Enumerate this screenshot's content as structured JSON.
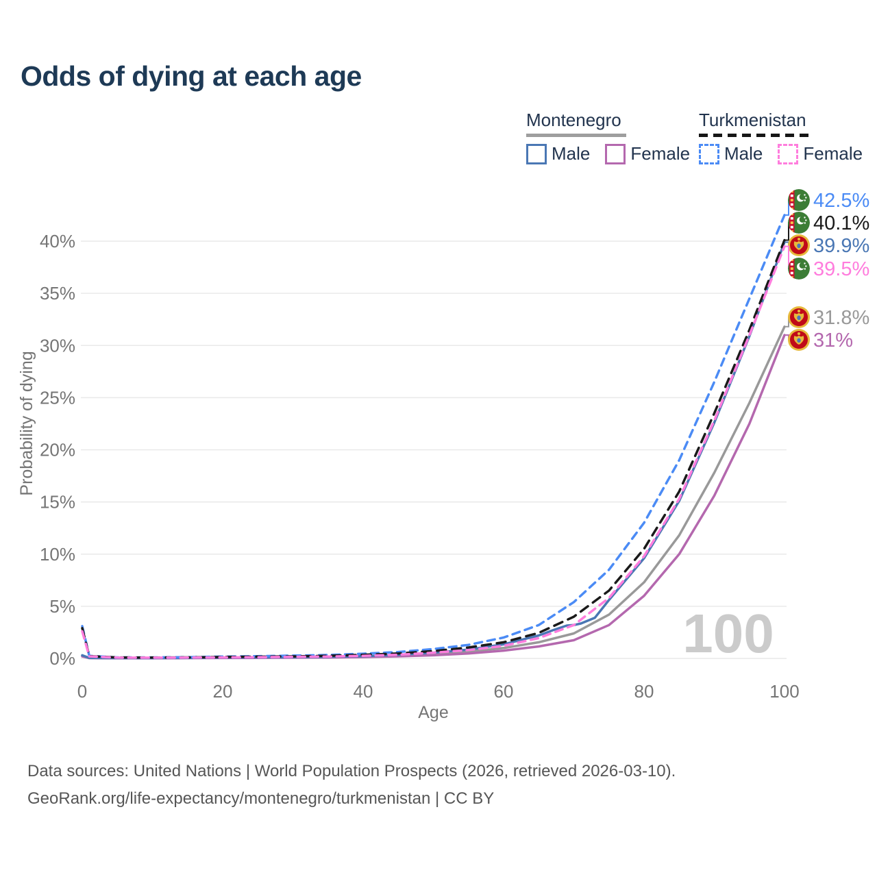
{
  "title": "Odds of dying at each age",
  "watermark_age": "100",
  "legend": {
    "groups": [
      {
        "name": "Montenegro",
        "line_style": "solid",
        "line_color": "#9e9e9e",
        "items": [
          {
            "label": "Male",
            "color": "#4a77b4",
            "dashed": false
          },
          {
            "label": "Female",
            "color": "#b468ae",
            "dashed": false
          }
        ]
      },
      {
        "name": "Turkmenistan",
        "line_style": "dashed",
        "line_color": "#161616",
        "items": [
          {
            "label": "Male",
            "color": "#4b8bf5",
            "dashed": true
          },
          {
            "label": "Female",
            "color": "#ff7ddd",
            "dashed": true
          }
        ]
      }
    ]
  },
  "footer": {
    "line1": "Data sources: United Nations | World Population Prospects (2026, retrieved 2026-03-10).",
    "line2": "GeoRank.org/life-expectancy/montenegro/turkmenistan | CC BY"
  },
  "chart_data": {
    "type": "line",
    "title": "Odds of dying at each age",
    "xlabel": "Age",
    "ylabel": "Probability of dying",
    "x_ticks": [
      0,
      20,
      40,
      60,
      80,
      100
    ],
    "y_ticks_percent": [
      0,
      5,
      10,
      15,
      20,
      25,
      30,
      35,
      40
    ],
    "xlim": [
      0,
      100
    ],
    "ylim_percent": [
      0,
      44
    ],
    "grid": "horizontal",
    "legend_position": "top-right",
    "series": [
      {
        "name": "Montenegro (both sexes)",
        "country": "Montenegro",
        "sex": "Both",
        "color": "#999999",
        "dashed": false,
        "flag": "montenegro",
        "end_label": "31.8%",
        "points": [
          [
            0,
            0.25
          ],
          [
            1,
            0.04
          ],
          [
            5,
            0.02
          ],
          [
            10,
            0.02
          ],
          [
            15,
            0.04
          ],
          [
            20,
            0.06
          ],
          [
            25,
            0.08
          ],
          [
            30,
            0.1
          ],
          [
            35,
            0.12
          ],
          [
            40,
            0.17
          ],
          [
            45,
            0.27
          ],
          [
            50,
            0.42
          ],
          [
            55,
            0.65
          ],
          [
            60,
            1.0
          ],
          [
            65,
            1.55
          ],
          [
            70,
            2.4
          ],
          [
            75,
            4.2
          ],
          [
            80,
            7.3
          ],
          [
            85,
            11.8
          ],
          [
            90,
            17.8
          ],
          [
            95,
            24.5
          ],
          [
            100,
            31.8
          ]
        ]
      },
      {
        "name": "Montenegro Female",
        "country": "Montenegro",
        "sex": "Female",
        "color": "#b468ae",
        "dashed": false,
        "flag": "montenegro",
        "end_label": "31%",
        "points": [
          [
            0,
            0.2
          ],
          [
            1,
            0.03
          ],
          [
            5,
            0.02
          ],
          [
            10,
            0.02
          ],
          [
            15,
            0.03
          ],
          [
            20,
            0.04
          ],
          [
            25,
            0.05
          ],
          [
            30,
            0.07
          ],
          [
            35,
            0.09
          ],
          [
            40,
            0.13
          ],
          [
            45,
            0.2
          ],
          [
            50,
            0.3
          ],
          [
            55,
            0.48
          ],
          [
            60,
            0.75
          ],
          [
            65,
            1.15
          ],
          [
            70,
            1.75
          ],
          [
            75,
            3.2
          ],
          [
            80,
            6.0
          ],
          [
            85,
            10.0
          ],
          [
            90,
            15.6
          ],
          [
            95,
            22.5
          ],
          [
            100,
            31.0
          ]
        ]
      },
      {
        "name": "Montenegro Male",
        "country": "Montenegro",
        "sex": "Male",
        "color": "#4a77b4",
        "dashed": false,
        "flag": "montenegro",
        "end_label": "39.9%",
        "points": [
          [
            0,
            0.3
          ],
          [
            1,
            0.05
          ],
          [
            5,
            0.03
          ],
          [
            10,
            0.03
          ],
          [
            15,
            0.05
          ],
          [
            20,
            0.08
          ],
          [
            25,
            0.1
          ],
          [
            30,
            0.12
          ],
          [
            35,
            0.15
          ],
          [
            40,
            0.22
          ],
          [
            45,
            0.35
          ],
          [
            50,
            0.55
          ],
          [
            55,
            0.85
          ],
          [
            60,
            1.35
          ],
          [
            65,
            2.2
          ],
          [
            67,
            2.7
          ],
          [
            69,
            3.15
          ],
          [
            70,
            3.2
          ],
          [
            71,
            3.35
          ],
          [
            73,
            3.9
          ],
          [
            75,
            5.6
          ],
          [
            80,
            9.6
          ],
          [
            85,
            15.1
          ],
          [
            90,
            22.6
          ],
          [
            95,
            30.9
          ],
          [
            100,
            39.9
          ]
        ]
      },
      {
        "name": "Turkmenistan Male",
        "country": "Turkmenistan",
        "sex": "Male",
        "color": "#4b8bf5",
        "dashed": true,
        "flag": "turkmenistan",
        "end_label": "42.5%",
        "points": [
          [
            0,
            3.1
          ],
          [
            1,
            0.25
          ],
          [
            5,
            0.1
          ],
          [
            10,
            0.1
          ],
          [
            15,
            0.12
          ],
          [
            20,
            0.18
          ],
          [
            25,
            0.22
          ],
          [
            30,
            0.27
          ],
          [
            35,
            0.33
          ],
          [
            40,
            0.45
          ],
          [
            45,
            0.62
          ],
          [
            50,
            0.9
          ],
          [
            55,
            1.3
          ],
          [
            60,
            2.0
          ],
          [
            65,
            3.2
          ],
          [
            70,
            5.4
          ],
          [
            75,
            8.5
          ],
          [
            80,
            13.0
          ],
          [
            85,
            19.0
          ],
          [
            90,
            26.5
          ],
          [
            95,
            34.5
          ],
          [
            100,
            42.5
          ]
        ]
      },
      {
        "name": "Turkmenistan (both sexes)",
        "country": "Turkmenistan",
        "sex": "Both",
        "color": "#1a1a1a",
        "dashed": true,
        "flag": "turkmenistan",
        "end_label": "40.1%",
        "points": [
          [
            0,
            2.9
          ],
          [
            1,
            0.22
          ],
          [
            5,
            0.09
          ],
          [
            10,
            0.08
          ],
          [
            15,
            0.1
          ],
          [
            20,
            0.14
          ],
          [
            25,
            0.17
          ],
          [
            30,
            0.2
          ],
          [
            35,
            0.25
          ],
          [
            40,
            0.35
          ],
          [
            45,
            0.47
          ],
          [
            50,
            0.7
          ],
          [
            55,
            1.05
          ],
          [
            60,
            1.55
          ],
          [
            65,
            2.45
          ],
          [
            70,
            4.0
          ],
          [
            75,
            6.5
          ],
          [
            80,
            10.5
          ],
          [
            85,
            16.0
          ],
          [
            90,
            23.5
          ],
          [
            95,
            31.5
          ],
          [
            100,
            40.1
          ]
        ]
      },
      {
        "name": "Turkmenistan Female",
        "country": "Turkmenistan",
        "sex": "Female",
        "color": "#ff7ddd",
        "dashed": true,
        "flag": "turkmenistan",
        "end_label": "39.5%",
        "points": [
          [
            0,
            2.6
          ],
          [
            1,
            0.2
          ],
          [
            5,
            0.08
          ],
          [
            10,
            0.07
          ],
          [
            15,
            0.08
          ],
          [
            20,
            0.1
          ],
          [
            25,
            0.12
          ],
          [
            30,
            0.15
          ],
          [
            35,
            0.18
          ],
          [
            40,
            0.25
          ],
          [
            45,
            0.35
          ],
          [
            50,
            0.55
          ],
          [
            55,
            0.8
          ],
          [
            60,
            1.2
          ],
          [
            65,
            1.95
          ],
          [
            70,
            3.2
          ],
          [
            75,
            5.8
          ],
          [
            80,
            9.8
          ],
          [
            85,
            15.3
          ],
          [
            90,
            22.8
          ],
          [
            95,
            31.0
          ],
          [
            100,
            39.5
          ]
        ]
      }
    ]
  }
}
